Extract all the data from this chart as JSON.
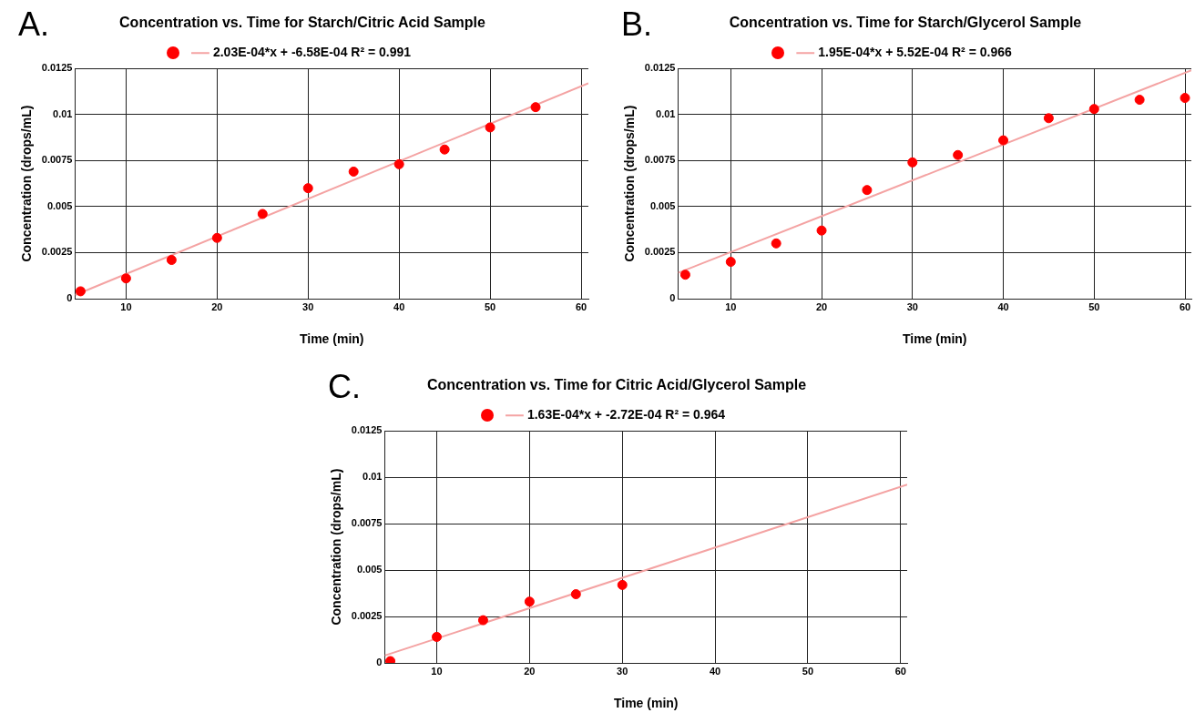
{
  "chart_data": [
    {
      "type": "scatter",
      "title": "Concentration vs. Time for Starch/Citric Acid Sample",
      "xlabel": "Time (min)",
      "ylabel": "Concentration (drops/mL)",
      "annotations": [
        "A."
      ],
      "xlim": [
        4.4,
        60.8
      ],
      "xticks": [
        10,
        20,
        30,
        40,
        50,
        60
      ],
      "ylim": [
        0,
        0.0125
      ],
      "yticks": [
        0,
        0.0025,
        0.005,
        0.0075,
        0.01,
        0.0125
      ],
      "grid": true,
      "legend": "top",
      "series": [
        {
          "marker": "circle",
          "color": "#ff0000",
          "x": [
            5,
            10,
            15,
            20,
            25,
            30,
            35,
            40,
            45,
            50,
            55
          ],
          "values": [
            0.0004,
            0.0011,
            0.0021,
            0.0033,
            0.0046,
            0.006,
            0.0069,
            0.0073,
            0.0081,
            0.0093,
            0.0104
          ]
        },
        {
          "type": "line",
          "marker": "none",
          "name": "2.03E-04*x + -6.58E-04 R² = 0.991",
          "color": "#f4a3a3",
          "x": [
            4.4,
            60.8
          ],
          "values": [
            0.0002,
            0.0117
          ]
        }
      ]
    },
    {
      "type": "scatter",
      "title": "Concentration vs. Time for Starch/Glycerol Sample",
      "xlabel": "Time (min)",
      "ylabel": "Concentration (drops/mL)",
      "annotations": [
        "B."
      ],
      "xlim": [
        4.2,
        60.7
      ],
      "xticks": [
        10,
        20,
        30,
        40,
        50,
        60
      ],
      "ylim": [
        0,
        0.0125
      ],
      "yticks": [
        0,
        0.0025,
        0.005,
        0.0075,
        0.01,
        0.0125
      ],
      "grid": true,
      "legend": "top",
      "series": [
        {
          "marker": "circle",
          "color": "#ff0000",
          "x": [
            5,
            10,
            15,
            20,
            25,
            30,
            35,
            40,
            45,
            50,
            55,
            60
          ],
          "values": [
            0.0013,
            0.002,
            0.003,
            0.0037,
            0.0059,
            0.0074,
            0.0078,
            0.0086,
            0.0098,
            0.0103,
            0.0108,
            0.0109
          ]
        },
        {
          "type": "line",
          "marker": "none",
          "name": "1.95E-04*x + 5.52E-04 R² = 0.966",
          "color": "#f4a3a3",
          "x": [
            4.2,
            60.7
          ],
          "values": [
            0.0014,
            0.0124
          ]
        }
      ]
    },
    {
      "type": "scatter",
      "title": "Concentration vs. Time for Citric Acid/Glycerol Sample",
      "xlabel": "Time (min)",
      "ylabel": "Concentration (drops/mL)",
      "annotations": [
        "C."
      ],
      "xlim": [
        4.4,
        60.7
      ],
      "xticks": [
        10,
        20,
        30,
        40,
        50,
        60
      ],
      "ylim": [
        0,
        0.0125
      ],
      "yticks": [
        0,
        0.0025,
        0.005,
        0.0075,
        0.01,
        0.0125
      ],
      "grid": true,
      "legend": "top",
      "series": [
        {
          "marker": "circle",
          "color": "#ff0000",
          "x": [
            5,
            10,
            15,
            20,
            25,
            30
          ],
          "values": [
            0.0001,
            0.0014,
            0.0023,
            0.0033,
            0.0037,
            0.0042
          ]
        },
        {
          "type": "line",
          "marker": "none",
          "name": "1.63E-04*x + -2.72E-04 R² = 0.964",
          "color": "#f4a3a3",
          "x": [
            4.4,
            60.7
          ],
          "values": [
            0.0004,
            0.0096
          ]
        }
      ]
    }
  ]
}
